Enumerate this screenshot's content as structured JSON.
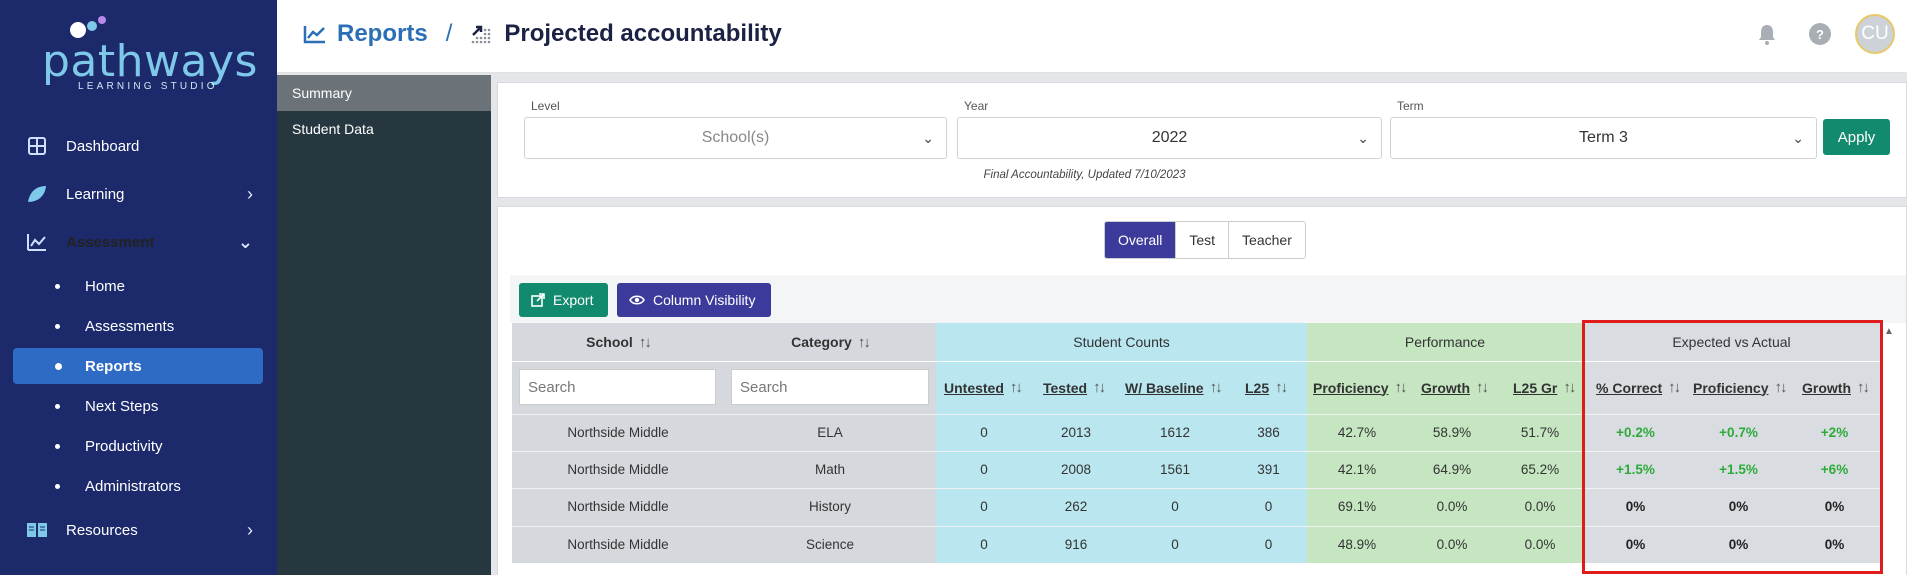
{
  "sidebar": {
    "logo": {
      "word": "pathways",
      "sub": "LEARNING STUDIO"
    },
    "items": [
      {
        "label": "Dashboard",
        "icon": "dashboard-icon"
      },
      {
        "label": "Learning",
        "icon": "leaf-icon"
      },
      {
        "label": "Assessment",
        "icon": "chart-icon"
      }
    ],
    "assessment_sub": [
      {
        "label": "Home"
      },
      {
        "label": "Assessments"
      },
      {
        "label": "Reports"
      },
      {
        "label": "Next Steps"
      },
      {
        "label": "Productivity"
      },
      {
        "label": "Administrators"
      }
    ],
    "resources": {
      "label": "Resources",
      "icon": "book-icon"
    }
  },
  "subnav": {
    "items": [
      "Summary",
      "Student Data"
    ]
  },
  "header": {
    "crumb1": "Reports",
    "separator": "/",
    "crumb2": "Projected accountability",
    "avatar": "CU"
  },
  "filters": {
    "level_label": "Level",
    "level_value": "School(s)",
    "year_label": "Year",
    "year_value": "2022",
    "term_label": "Term",
    "term_value": "Term 3",
    "apply": "Apply",
    "note": "Final Accountability, Updated 7/10/2023"
  },
  "tabs": [
    "Overall",
    "Test",
    "Teacher"
  ],
  "buttons": {
    "export": "Export",
    "column_visibility": "Column Visibility"
  },
  "table": {
    "groups": {
      "student_counts": "Student Counts",
      "performance": "Performance",
      "expected": "Expected vs Actual"
    },
    "cols": {
      "school": "School",
      "category": "Category",
      "untested": "Untested",
      "tested": "Tested",
      "baseline": "W/ Baseline",
      "l25": "L25",
      "proficiency": "Proficiency",
      "growth": "Growth",
      "l25gr": "L25 Gr",
      "pct_correct": "% Correct",
      "exp_prof": "Proficiency",
      "exp_growth": "Growth"
    },
    "search_placeholder": "Search",
    "rows": [
      {
        "school": "Northside Middle",
        "category": "ELA",
        "untested": "0",
        "tested": "2013",
        "baseline": "1612",
        "l25": "386",
        "proficiency": "42.7%",
        "growth": "58.9%",
        "l25gr": "51.7%",
        "pct_correct": "+0.2%",
        "exp_prof": "+0.7%",
        "exp_growth": "+2%"
      },
      {
        "school": "Northside Middle",
        "category": "Math",
        "untested": "0",
        "tested": "2008",
        "baseline": "1561",
        "l25": "391",
        "proficiency": "42.1%",
        "growth": "64.9%",
        "l25gr": "65.2%",
        "pct_correct": "+1.5%",
        "exp_prof": "+1.5%",
        "exp_growth": "+6%"
      },
      {
        "school": "Northside Middle",
        "category": "History",
        "untested": "0",
        "tested": "262",
        "baseline": "0",
        "l25": "0",
        "proficiency": "69.1%",
        "growth": "0.0%",
        "l25gr": "0.0%",
        "pct_correct": "0%",
        "exp_prof": "0%",
        "exp_growth": "0%"
      },
      {
        "school": "Northside Middle",
        "category": "Science",
        "untested": "0",
        "tested": "916",
        "baseline": "0",
        "l25": "0",
        "proficiency": "48.9%",
        "growth": "0.0%",
        "l25gr": "0.0%",
        "pct_correct": "0%",
        "exp_prof": "0%",
        "exp_growth": "0%"
      }
    ]
  },
  "colors": {
    "sidebar": "#1c2a6b",
    "active": "#2e6bc4",
    "teal": "#128a6e",
    "purple": "#3c3b9b",
    "counts_bg": "#b9e6ef",
    "perf_bg": "#c5e6c1",
    "exp_bg": "#d9dde1",
    "positive": "#2eaa3a",
    "highlight": "#e01b1b"
  }
}
